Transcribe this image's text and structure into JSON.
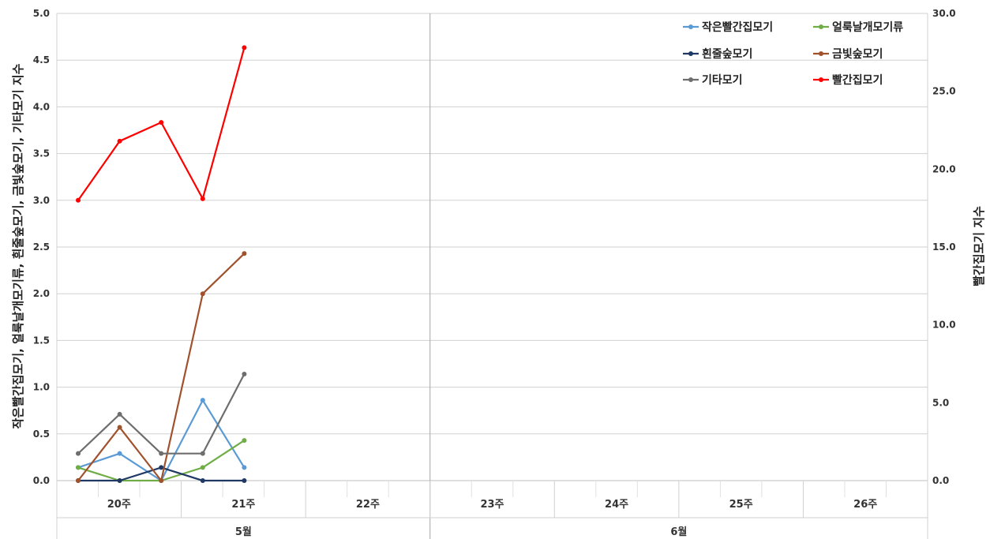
{
  "chart_data": {
    "type": "line",
    "x": [
      "20주-1",
      "20주-2",
      "20주-3",
      "21주-1",
      "21주-2"
    ],
    "week_labels": [
      "20주",
      "21주",
      "22주",
      "23주",
      "24주",
      "25주",
      "26주"
    ],
    "month_labels": [
      "5월",
      "6월"
    ],
    "ylabel": "작은빨간집모기, 얼룩날개모기류, 흰줄숲모기, 금빛숲모기, 기타모기 지수",
    "y2label": "빨간집모기 지수",
    "ylim": [
      0,
      5.0
    ],
    "y2lim": [
      0,
      30.0
    ],
    "yticks": [
      "0.0",
      "0.5",
      "1.0",
      "1.5",
      "2.0",
      "2.5",
      "3.0",
      "3.5",
      "4.0",
      "4.5",
      "5.0"
    ],
    "y2ticks": [
      "0.0",
      "5.0",
      "10.0",
      "15.0",
      "20.0",
      "25.0",
      "30.0"
    ],
    "grid": true,
    "legend": "top-right",
    "series": [
      {
        "name": "작은빨간집모기",
        "color": "#5b9bd5",
        "axis": "left",
        "values": [
          0.14,
          0.29,
          0.0,
          0.86,
          0.14
        ]
      },
      {
        "name": "얼룩날개모기류",
        "color": "#70ad47",
        "axis": "left",
        "values": [
          0.14,
          0.0,
          0.0,
          0.14,
          0.43
        ]
      },
      {
        "name": "흰줄숲모기",
        "color": "#1f3864",
        "axis": "left",
        "values": [
          0.0,
          0.0,
          0.14,
          0.0,
          0.0
        ]
      },
      {
        "name": "금빛숲모기",
        "color": "#a0522d",
        "axis": "left",
        "values": [
          0.0,
          0.57,
          0.0,
          2.0,
          2.43
        ]
      },
      {
        "name": "기타모기",
        "color": "#6e6e6e",
        "axis": "left",
        "values": [
          0.29,
          0.71,
          0.29,
          0.29,
          1.14
        ]
      },
      {
        "name": "빨간집모기",
        "color": "#ff0000",
        "axis": "right",
        "values": [
          18.0,
          21.8,
          23.0,
          18.1,
          27.8
        ]
      }
    ]
  }
}
